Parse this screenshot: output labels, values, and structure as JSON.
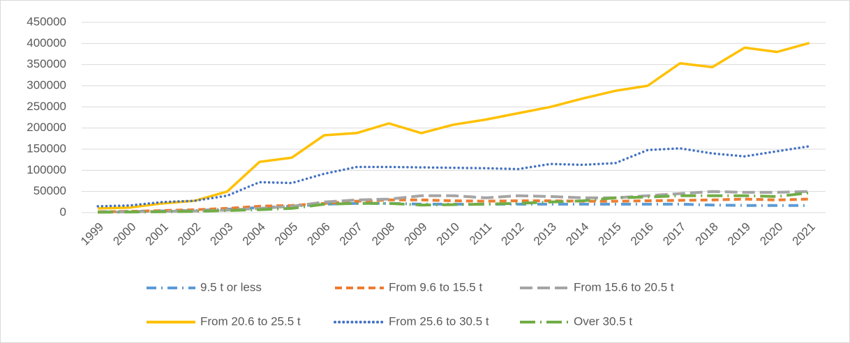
{
  "chart_data": {
    "type": "line",
    "categories": [
      "1999",
      "2000",
      "2001",
      "2002",
      "2003",
      "2004",
      "2005",
      "2006",
      "2007",
      "2008",
      "2009",
      "2010",
      "2011",
      "2012",
      "2013",
      "2014",
      "2015",
      "2016",
      "2017",
      "2018",
      "2019",
      "2020",
      "2021"
    ],
    "series": [
      {
        "name": "9.5 t or less",
        "color": "#5b9bd5",
        "dash": "14,7,2,7",
        "values": [
          2000,
          3000,
          4000,
          5000,
          8000,
          12000,
          15000,
          20000,
          22000,
          22000,
          20000,
          20000,
          20000,
          20000,
          20000,
          20000,
          20000,
          20000,
          20000,
          18000,
          17000,
          17000,
          17000
        ]
      },
      {
        "name": "From 9.6 to 15.5 t",
        "color": "#ed7d31",
        "dash": "10,6",
        "values": [
          2000,
          3000,
          5000,
          7000,
          10000,
          15000,
          17000,
          22000,
          27000,
          30000,
          30000,
          28000,
          27000,
          28000,
          28000,
          27000,
          27000,
          28000,
          29000,
          30000,
          32000,
          30000,
          32000
        ]
      },
      {
        "name": "From 15.6 to 20.5 t",
        "color": "#a5a5a5",
        "dash": "18,7",
        "values": [
          1000,
          2000,
          3000,
          4000,
          6000,
          10000,
          15000,
          25000,
          30000,
          32000,
          40000,
          40000,
          35000,
          40000,
          38000,
          35000,
          35000,
          40000,
          45000,
          50000,
          48000,
          48000,
          50000
        ]
      },
      {
        "name": "From 20.6 to 25.5 t",
        "color": "#ffc000",
        "dash": "none",
        "values": [
          10000,
          12000,
          22000,
          28000,
          50000,
          120000,
          130000,
          183000,
          188000,
          211000,
          188000,
          208000,
          220000,
          235000,
          250000,
          270000,
          288000,
          300000,
          353000,
          344000,
          390000,
          380000,
          401000
        ]
      },
      {
        "name": "From 25.6 to 30.5 t",
        "color": "#4472c4",
        "dash": "0.1,6",
        "values": [
          15000,
          17000,
          25000,
          28000,
          40000,
          72000,
          70000,
          92000,
          108000,
          108000,
          107000,
          106000,
          105000,
          103000,
          115000,
          113000,
          117000,
          148000,
          152000,
          140000,
          133000,
          145000,
          157000
        ]
      },
      {
        "name": "Over 30.5 t",
        "color": "#70ad47",
        "dash": "22,7,2,7",
        "values": [
          1000,
          1500,
          2000,
          3000,
          5000,
          7000,
          10000,
          20000,
          22000,
          22000,
          18000,
          19000,
          20000,
          22000,
          25000,
          28000,
          35000,
          37000,
          40000,
          40000,
          40000,
          38000,
          47000
        ]
      }
    ],
    "ylim": [
      0,
      450000
    ],
    "yticks": [
      0,
      50000,
      100000,
      150000,
      200000,
      250000,
      300000,
      350000,
      400000,
      450000
    ],
    "grid": true
  }
}
